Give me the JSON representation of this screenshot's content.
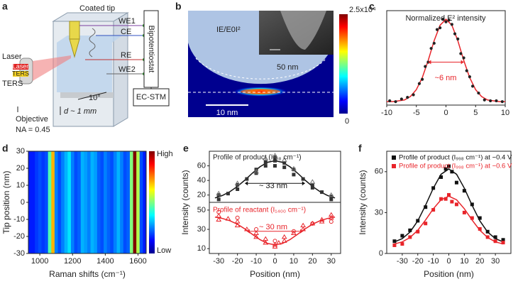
{
  "figure": {
    "panel_letters": [
      "a",
      "b",
      "c",
      "d",
      "e",
      "f"
    ],
    "diagram_a": {
      "coated_tip": "Coated tip",
      "we1": "WE1",
      "ce": "CE",
      "re": "RE",
      "we2": "WE2",
      "bipotentiostat": "Bipotentiostat",
      "ec_stm": "EC-STM",
      "laser": "Laser",
      "laser_tag": "Laser",
      "ters_tag": "TERS",
      "ters": "TERS",
      "angle": "10°",
      "distance": "d ~ 1 mm",
      "objective": "Objective",
      "na": "NA = 0.45"
    },
    "simulation_b": {
      "field_label": "IE/E0I²",
      "tip_label": "50 nm",
      "scale_bar": "10 nm",
      "colorbar_max": "2.5x10⁴",
      "colorbar_min": "0"
    }
  },
  "chart_data": [
    {
      "type": "line",
      "title": "Normalized E² intensity",
      "annotation": "~6 nm",
      "xlim": [
        -10,
        10
      ],
      "xticks": [
        -10,
        -5,
        0,
        5,
        10
      ],
      "ylim": [
        0,
        1.1
      ],
      "series": [
        {
          "color": "#e8242a",
          "mode": "line",
          "x": [
            -10,
            -9,
            -8,
            -7,
            -6,
            -5,
            -4,
            -3,
            -2,
            -1,
            0,
            1,
            2,
            3,
            4,
            5,
            6,
            7,
            8,
            9,
            10
          ],
          "values": [
            0.04,
            0.04,
            0.05,
            0.06,
            0.1,
            0.18,
            0.32,
            0.52,
            0.75,
            0.93,
            1.0,
            0.93,
            0.75,
            0.52,
            0.32,
            0.18,
            0.1,
            0.06,
            0.05,
            0.04,
            0.04
          ]
        },
        {
          "color": "#222222",
          "mode": "marker",
          "marker": "dot",
          "x": [
            -9.5,
            -8.5,
            -7.5,
            -6.5,
            -5.5,
            -4.5,
            -4,
            -3.5,
            -3,
            -2.5,
            -2,
            -1.5,
            -1,
            -0.5,
            0,
            0.5,
            1,
            1.5,
            2,
            2.5,
            3,
            3.5,
            4,
            4.5,
            5.5,
            6.5,
            7.5,
            8.5,
            9.5
          ],
          "values": [
            0.05,
            0.04,
            0.07,
            0.09,
            0.12,
            0.25,
            0.3,
            0.45,
            0.5,
            0.66,
            0.72,
            0.88,
            0.9,
            1.0,
            0.97,
            0.99,
            0.94,
            0.83,
            0.77,
            0.6,
            0.55,
            0.4,
            0.33,
            0.22,
            0.14,
            0.06,
            0.05,
            0.05,
            0.04
          ]
        }
      ]
    },
    {
      "type": "heatmap",
      "xlabel": "Raman shifts (cm⁻¹)",
      "ylabel": "Tip position (nm)",
      "xlim": [
        930,
        1650
      ],
      "xticks": [
        1000,
        1200,
        1400,
        1600
      ],
      "ylim": [
        -30,
        30
      ],
      "yticks": [
        -30,
        -20,
        -10,
        0,
        10,
        20,
        30
      ],
      "colorbar_labels": [
        "High",
        "Low"
      ],
      "zlim": [
        0,
        1
      ],
      "x": [
        940,
        960,
        980,
        1000,
        1020,
        1040,
        1060,
        1080,
        1100,
        1120,
        1140,
        1160,
        1180,
        1200,
        1220,
        1240,
        1260,
        1280,
        1300,
        1320,
        1340,
        1360,
        1380,
        1400,
        1420,
        1440,
        1460,
        1480,
        1500,
        1520,
        1540,
        1560,
        1580,
        1600,
        1620,
        1640
      ],
      "values": [
        0.15,
        0.15,
        0.18,
        0.2,
        0.18,
        0.2,
        0.45,
        0.7,
        0.25,
        0.2,
        0.25,
        0.3,
        0.35,
        0.25,
        0.2,
        0.22,
        0.3,
        0.28,
        0.25,
        0.3,
        0.28,
        0.22,
        0.2,
        0.25,
        0.22,
        0.2,
        0.25,
        0.3,
        0.25,
        0.2,
        0.22,
        0.5,
        1.0,
        0.55,
        0.2,
        0.15
      ]
    },
    {
      "type": "line",
      "title": "Profile of product (I₉₉₈ cm⁻¹)",
      "annotation": "~ 33 nm",
      "ylabel": "Intensity (counts)",
      "xlim": [
        -35,
        35
      ],
      "ylim": [
        10,
        80
      ],
      "yticks": [
        20,
        40,
        60
      ],
      "series": [
        {
          "color": "#111111",
          "mode": "line",
          "x": [
            -32,
            -28,
            -24,
            -20,
            -16,
            -12,
            -8,
            -4,
            0,
            4,
            8,
            12,
            16,
            20,
            24,
            28,
            32
          ],
          "values": [
            16.0,
            19.4,
            24.7,
            31.8,
            40.6,
            50.1,
            58.7,
            64.8,
            67,
            64.8,
            58.7,
            50.1,
            40.6,
            31.8,
            24.7,
            19.4,
            16.0
          ]
        },
        {
          "color": "#333333",
          "mode": "marker",
          "marker": "square",
          "x": [
            -30,
            -30,
            -25,
            -20,
            -20,
            -15,
            -10,
            -10,
            -5,
            -5,
            0,
            0,
            0,
            5,
            5,
            10,
            10,
            15,
            20,
            20,
            25,
            30,
            30
          ],
          "values": [
            14,
            20,
            22,
            28,
            34,
            42,
            50,
            55,
            60,
            65,
            67,
            72,
            60,
            64,
            58,
            55,
            48,
            42,
            34,
            30,
            24,
            18,
            14
          ]
        },
        {
          "color": "#777777",
          "mode": "marker",
          "marker": "triangle",
          "x": [
            -30,
            -20,
            -10,
            -5,
            0,
            5,
            10,
            20,
            30
          ],
          "values": [
            22,
            36,
            52,
            70,
            74,
            68,
            56,
            38,
            20
          ]
        }
      ]
    },
    {
      "type": "line",
      "title": "Profile of reactant (I₁₄₀₀ cm⁻¹)",
      "annotation": "~ 30 nm",
      "xlabel": "Position (nm)",
      "xlim": [
        -35,
        35
      ],
      "xticks": [
        -30,
        -20,
        -10,
        0,
        10,
        20,
        30
      ],
      "ylim": [
        5,
        58
      ],
      "yticks": [
        10,
        30,
        50
      ],
      "series": [
        {
          "color": "#e8242a",
          "mode": "line",
          "x": [
            -32,
            -28,
            -24,
            -20,
            -16,
            -12,
            -8,
            -4,
            0,
            4,
            8,
            12,
            16,
            20,
            24,
            28,
            32
          ],
          "values": [
            42.7,
            41.3,
            38.9,
            35.3,
            30.4,
            24.8,
            19.4,
            15.4,
            14,
            15.4,
            19.4,
            24.8,
            30.4,
            35.3,
            38.9,
            41.3,
            42.7
          ]
        },
        {
          "color": "#e8242a",
          "mode": "marker",
          "marker": "triangle",
          "x": [
            -30,
            -30,
            -25,
            -20,
            -20,
            -15,
            -10,
            -10,
            -5,
            -5,
            0,
            0,
            2,
            5,
            5,
            10,
            15,
            15,
            20,
            25,
            25,
            30,
            30
          ],
          "values": [
            44,
            40,
            41,
            38,
            34,
            30,
            26,
            22,
            16,
            20,
            14,
            12,
            16,
            18,
            22,
            26,
            30,
            34,
            36,
            38,
            40,
            42,
            45
          ]
        },
        {
          "color": "#e8242a",
          "mode": "marker",
          "marker": "circle",
          "x": [
            -30,
            -20,
            -10,
            0,
            10,
            20,
            30
          ],
          "values": [
            48,
            42,
            30,
            18,
            28,
            36,
            38
          ]
        }
      ]
    },
    {
      "type": "line",
      "xlabel": "Position (nm)",
      "ylabel": "Intensity (counts)",
      "xlim": [
        -40,
        40
      ],
      "xticks": [
        -30,
        -20,
        -10,
        0,
        10,
        20,
        30
      ],
      "ylim": [
        0,
        75
      ],
      "yticks": [
        0,
        30,
        60
      ],
      "series": [
        {
          "color": "#111111",
          "mode": "line",
          "x": [
            -35,
            -30,
            -25,
            -20,
            -15,
            -10,
            -5,
            0,
            5,
            10,
            15,
            20,
            25,
            30,
            35
          ],
          "values": [
            8.5,
            10.9,
            15.7,
            23.9,
            35.3,
            47.9,
            58.1,
            62,
            58.1,
            47.9,
            35.3,
            23.9,
            15.7,
            10.9,
            8.5
          ]
        },
        {
          "color": "#e8242a",
          "mode": "line",
          "x": [
            -35,
            -30,
            -25,
            -20,
            -15,
            -10,
            -5,
            0,
            5,
            10,
            15,
            20,
            25,
            30,
            35
          ],
          "values": [
            7,
            8.5,
            11.7,
            17,
            24.5,
            32.8,
            39.4,
            42,
            39.4,
            32.8,
            24.5,
            17,
            11.7,
            8.5,
            7
          ]
        },
        {
          "name": "Profile of product (I₉₉₈ cm⁻¹) at −0.4 V",
          "color": "#111111",
          "mode": "marker",
          "marker": "square",
          "x": [
            -35,
            -30,
            -25,
            -20,
            -15,
            -10,
            -5,
            -2,
            0,
            2,
            5,
            10,
            15,
            20,
            25,
            30,
            35
          ],
          "values": [
            9,
            13,
            17,
            24,
            34,
            48,
            56,
            62,
            64,
            60,
            52,
            46,
            36,
            26,
            16,
            12,
            10
          ]
        },
        {
          "name": "Profile of product (I₉₉₈ cm⁻¹) at −0.6 V",
          "color": "#e8242a",
          "mode": "marker",
          "marker": "square",
          "x": [
            -35,
            -30,
            -25,
            -20,
            -15,
            -10,
            -5,
            -2,
            0,
            2,
            5,
            10,
            15,
            20,
            25,
            30,
            35
          ],
          "values": [
            6,
            7,
            12,
            16,
            22,
            32,
            40,
            40,
            43,
            38,
            36,
            30,
            26,
            18,
            12,
            9,
            8
          ]
        }
      ]
    }
  ]
}
